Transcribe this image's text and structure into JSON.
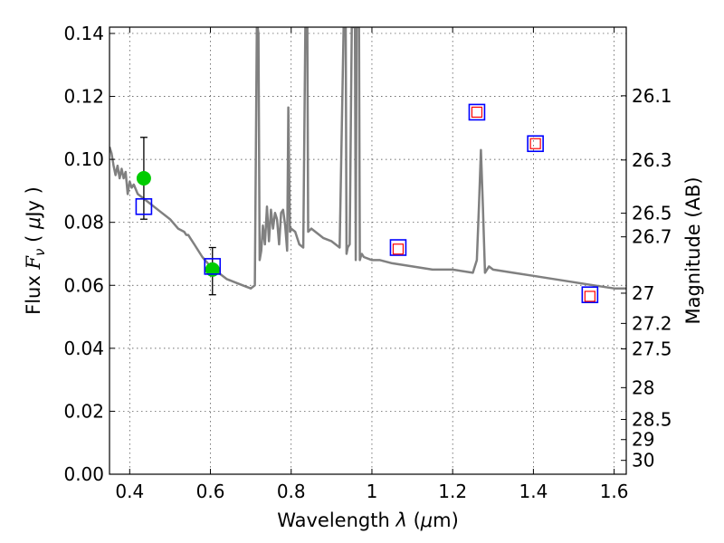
{
  "chart_data": {
    "type": "scatter",
    "title": "",
    "xlabel": "Wavelength  λ (μm)",
    "ylabel": "Flux  Fν  ( μJy )",
    "ylabel_right": "Magnitude (AB)",
    "xlim": [
      0.35,
      1.63
    ],
    "ylim": [
      0.0,
      0.142
    ],
    "grid": true,
    "x_ticks": [
      0.4,
      0.6,
      0.8,
      1.0,
      1.2,
      1.4,
      1.6
    ],
    "x_tick_labels": [
      "0.4",
      "0.6",
      "0.8",
      "1",
      "1.2",
      "1.4",
      "1.6"
    ],
    "y_ticks": [
      0.0,
      0.02,
      0.04,
      0.06,
      0.08,
      0.1,
      0.12,
      0.14
    ],
    "y_tick_labels": [
      "0.00",
      "0.02",
      "0.04",
      "0.06",
      "0.08",
      "0.10",
      "0.12",
      "0.14"
    ],
    "right_ticks": [
      {
        "flux": 0.1202,
        "label": "26.1"
      },
      {
        "flux": 0.0998,
        "label": "26.3"
      },
      {
        "flux": 0.0829,
        "label": "26.5"
      },
      {
        "flux": 0.0754,
        "label": "26.7"
      },
      {
        "flux": 0.0575,
        "label": "27"
      },
      {
        "flux": 0.0479,
        "label": "27.2"
      },
      {
        "flux": 0.0398,
        "label": "27.5"
      },
      {
        "flux": 0.0275,
        "label": "28"
      },
      {
        "flux": 0.0174,
        "label": "28.5"
      },
      {
        "flux": 0.011,
        "label": "29"
      },
      {
        "flux": 0.0044,
        "label": "30"
      }
    ],
    "series": [
      {
        "kind": "line",
        "color": "#808080",
        "x": [
          0.35,
          0.355,
          0.36,
          0.365,
          0.37,
          0.375,
          0.38,
          0.385,
          0.39,
          0.395,
          0.4,
          0.405,
          0.41,
          0.42,
          0.44,
          0.46,
          0.48,
          0.5,
          0.52,
          0.535,
          0.54,
          0.545,
          0.55,
          0.56,
          0.58,
          0.6,
          0.62,
          0.64,
          0.66,
          0.68,
          0.7,
          0.71,
          0.715,
          0.717,
          0.719,
          0.722,
          0.726,
          0.73,
          0.735,
          0.74,
          0.745,
          0.75,
          0.755,
          0.76,
          0.765,
          0.77,
          0.775,
          0.78,
          0.785,
          0.79,
          0.793,
          0.797,
          0.8,
          0.81,
          0.82,
          0.83,
          0.835,
          0.838,
          0.84,
          0.842,
          0.85,
          0.86,
          0.88,
          0.9,
          0.92,
          0.93,
          0.935,
          0.937,
          0.94,
          0.945,
          0.95,
          0.955,
          0.958,
          0.96,
          0.962,
          0.965,
          0.968,
          0.97,
          0.972,
          0.975,
          0.98,
          1.0,
          1.02,
          1.05,
          1.1,
          1.15,
          1.2,
          1.25,
          1.26,
          1.265,
          1.27,
          1.275,
          1.28,
          1.285,
          1.29,
          1.3,
          1.35,
          1.4,
          1.45,
          1.5,
          1.55,
          1.6,
          1.63
        ],
        "y": [
          0.104,
          0.102,
          0.098,
          0.095,
          0.098,
          0.094,
          0.097,
          0.094,
          0.096,
          0.089,
          0.093,
          0.091,
          0.092,
          0.089,
          0.087,
          0.085,
          0.083,
          0.081,
          0.078,
          0.077,
          0.076,
          0.076,
          0.075,
          0.073,
          0.069,
          0.066,
          0.064,
          0.062,
          0.061,
          0.06,
          0.059,
          0.06,
          0.142,
          0.142,
          0.14,
          0.068,
          0.071,
          0.079,
          0.073,
          0.085,
          0.074,
          0.084,
          0.078,
          0.083,
          0.081,
          0.073,
          0.083,
          0.084,
          0.079,
          0.071,
          0.1165,
          0.077,
          0.078,
          0.077,
          0.073,
          0.072,
          0.142,
          0.142,
          0.142,
          0.077,
          0.078,
          0.077,
          0.075,
          0.074,
          0.072,
          0.142,
          0.142,
          0.07,
          0.072,
          0.073,
          0.142,
          0.142,
          0.142,
          0.068,
          0.142,
          0.142,
          0.142,
          0.068,
          0.069,
          0.07,
          0.069,
          0.068,
          0.068,
          0.067,
          0.066,
          0.065,
          0.065,
          0.064,
          0.068,
          0.085,
          0.103,
          0.085,
          0.064,
          0.065,
          0.066,
          0.065,
          0.064,
          0.063,
          0.062,
          0.061,
          0.06,
          0.059,
          0.059
        ]
      },
      {
        "kind": "errorbar",
        "color": "#00cc00",
        "points": [
          {
            "x": 0.435,
            "y": 0.094,
            "lo": 0.081,
            "hi": 0.107
          },
          {
            "x": 0.605,
            "y": 0.065,
            "lo": 0.057,
            "hi": 0.072
          }
        ]
      },
      {
        "kind": "square-blue",
        "color": "#0000ff",
        "x": [
          0.435,
          0.605,
          1.065,
          1.26,
          1.405,
          1.54
        ],
        "y": [
          0.085,
          0.066,
          0.072,
          0.115,
          0.105,
          0.057
        ]
      },
      {
        "kind": "square-red",
        "color": "#ff0000",
        "x": [
          1.065,
          1.26,
          1.405,
          1.54
        ],
        "y": [
          0.0715,
          0.115,
          0.105,
          0.0565
        ]
      }
    ]
  }
}
